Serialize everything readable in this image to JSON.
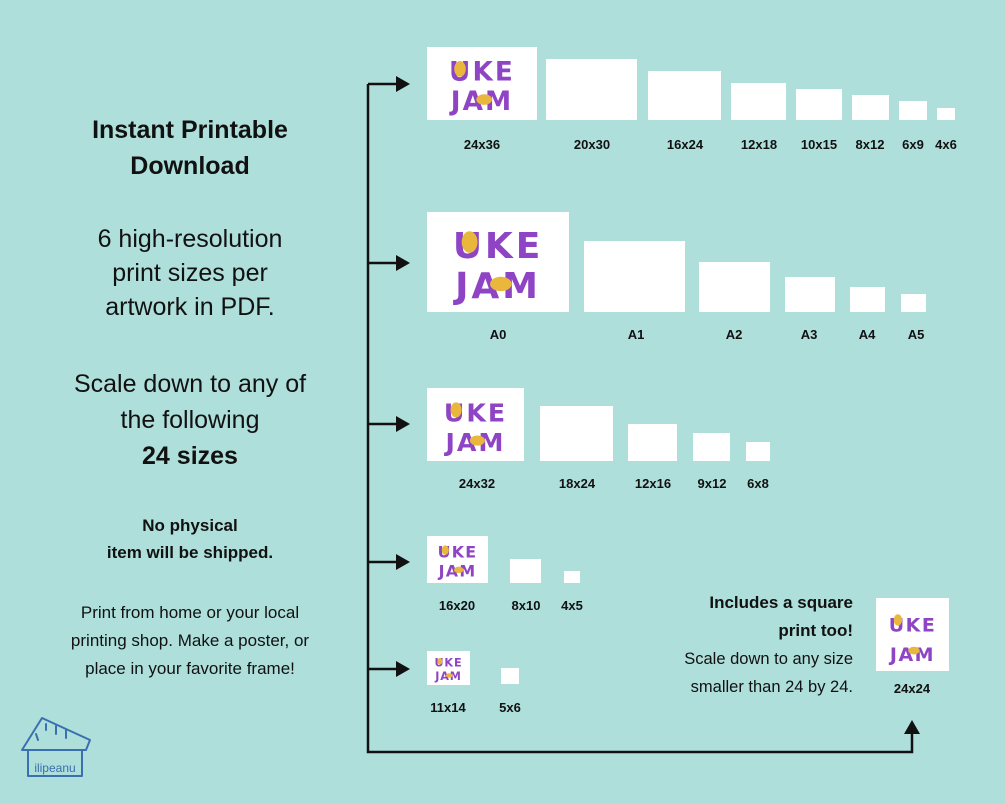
{
  "title": {
    "line1": "Instant Printable",
    "line2": "Download"
  },
  "description": {
    "line1": "6 high-resolution",
    "line2": "print sizes per",
    "line3": "artwork in PDF."
  },
  "scale": {
    "line1": "Scale down to any of",
    "line2": "the following",
    "line3": "24 sizes"
  },
  "notice": {
    "line1": "No physical",
    "line2": "item will be shipped."
  },
  "print_info": {
    "line1": "Print from home or your local",
    "line2": "printing shop. Make a poster, or",
    "line3": "place in your favorite frame!"
  },
  "groups": [
    {
      "sizes": [
        "24x36",
        "20x30",
        "16x24",
        "12x18",
        "10x15",
        "8x12",
        "6x9",
        "4x6"
      ]
    },
    {
      "sizes": [
        "A0",
        "A1",
        "A2",
        "A3",
        "A4",
        "A5"
      ]
    },
    {
      "sizes": [
        "24x32",
        "18x24",
        "12x16",
        "9x12",
        "6x8"
      ]
    },
    {
      "sizes": [
        "16x20",
        "8x10",
        "4x5"
      ]
    },
    {
      "sizes": [
        "11x14",
        "5x6"
      ]
    }
  ],
  "square": {
    "title_line1": "Includes a square",
    "title_line2": "print too!",
    "desc_line1": "Scale down to any size",
    "desc_line2": "smaller than 24 by 24.",
    "size": "24x24"
  },
  "artwork": {
    "line1": "UKE",
    "line2": "JAM"
  },
  "logo_text": "ilipeanu",
  "colors": {
    "background": "#aedfdb",
    "frame": "#ffffff",
    "art_purple": "#8e44c4",
    "art_gold": "#e8b73c",
    "line": "#111111"
  }
}
